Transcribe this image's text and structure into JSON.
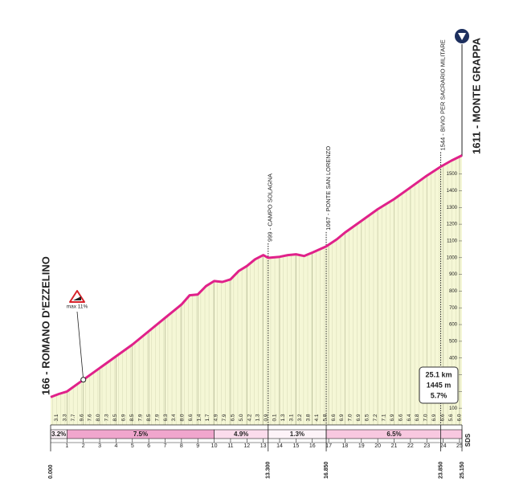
{
  "chart_data": {
    "type": "area",
    "start_label": "166 - ROMANO D'EZZELINO",
    "end_label": "1611 - MONTE GRAPPA",
    "x": [
      0,
      0.5,
      1,
      2,
      3,
      4,
      5,
      6,
      7,
      8,
      8.5,
      9,
      9.5,
      10,
      10.5,
      11,
      11.5,
      12,
      12.5,
      13,
      13.3,
      14,
      14.5,
      15,
      15.5,
      16,
      16.85,
      17.5,
      18,
      19,
      20,
      21,
      22,
      23,
      23.85,
      24.5,
      25.15
    ],
    "values": [
      166,
      185,
      200,
      270,
      340,
      410,
      480,
      560,
      640,
      720,
      775,
      780,
      830,
      860,
      855,
      870,
      920,
      950,
      990,
      1015,
      999,
      1005,
      1015,
      1020,
      1010,
      1030,
      1067,
      1110,
      1150,
      1220,
      1290,
      1350,
      1420,
      1490,
      1544,
      1580,
      1611
    ],
    "color": "#e0218a",
    "fill": "#f5f7d6",
    "xlim": [
      0,
      25.15
    ],
    "ylim": [
      0,
      1700
    ],
    "xticks": [
      1,
      2,
      3,
      4,
      5,
      6,
      7,
      8,
      9,
      10,
      11,
      12,
      13,
      14,
      15,
      16,
      17,
      18,
      19,
      20,
      21,
      22,
      23,
      24,
      25
    ],
    "yticks": [
      100,
      200,
      300,
      400,
      500,
      600,
      700,
      800,
      900,
      1000,
      1100,
      1200,
      1300,
      1400,
      1500
    ],
    "distance_marks": [
      {
        "value": 0,
        "label": "0.000"
      },
      {
        "value": 13.3,
        "label": "13.300"
      },
      {
        "value": 16.85,
        "label": "16.850"
      },
      {
        "value": 23.85,
        "label": "23.850"
      },
      {
        "value": 25.15,
        "label": "25.150"
      }
    ],
    "waypoints": [
      {
        "x": 13.3,
        "elevation": 999,
        "label": "999 - CAMPO SOLAGNA"
      },
      {
        "x": 16.85,
        "elevation": 1067,
        "label": "1067 - PONTE SAN LORENZO"
      },
      {
        "x": 23.85,
        "elevation": 1544,
        "label": "1544 - BIVIO PER SACRARIO MILITARE"
      }
    ],
    "segments": {
      "start": [
        0,
        1,
        10,
        13.3,
        16.85
      ],
      "end": [
        1,
        10,
        13.3,
        16.85,
        25.15
      ],
      "values": [
        3.2,
        7.5,
        4.9,
        1.3,
        6.5
      ],
      "value_labels": [
        "3.2%",
        "7.5%",
        "4.9%",
        "1.3%",
        "6.5%"
      ],
      "colors": [
        "#fbeef5",
        "#f0a6cd",
        "#fbdcec",
        "#fdf3f8",
        "#f8c8e0"
      ]
    },
    "km_gradients": [
      "3.1",
      "3.3",
      "7.7",
      "9.6",
      "7.6",
      "8.0",
      "7.3",
      "8.5",
      "6.9",
      "8.5",
      "7.9",
      "8.5",
      "7.9",
      "6.3",
      "3.4",
      "8.0",
      "6.6",
      "1.4",
      "1.7",
      "4.9",
      "7.9",
      "6.5",
      "5.0",
      "4.2",
      "1.3",
      "0.9",
      "0.1",
      "1.3",
      "3.1",
      "3.2",
      "3.8",
      "4.1",
      "5.8",
      "6.6",
      "6.9",
      "7.0",
      "6.9",
      "6.5",
      "7.2",
      "7.1",
      "6.9",
      "6.6",
      "6.4",
      "6.8",
      "7.0",
      "6.9",
      "6.6",
      "5.6",
      "6.0"
    ],
    "max_marker": {
      "x": 2,
      "elevation": 270,
      "label": "max 11%"
    },
    "info_box": [
      "25.1 km",
      "1445 m",
      "5.7%"
    ],
    "footer": "SDS"
  }
}
